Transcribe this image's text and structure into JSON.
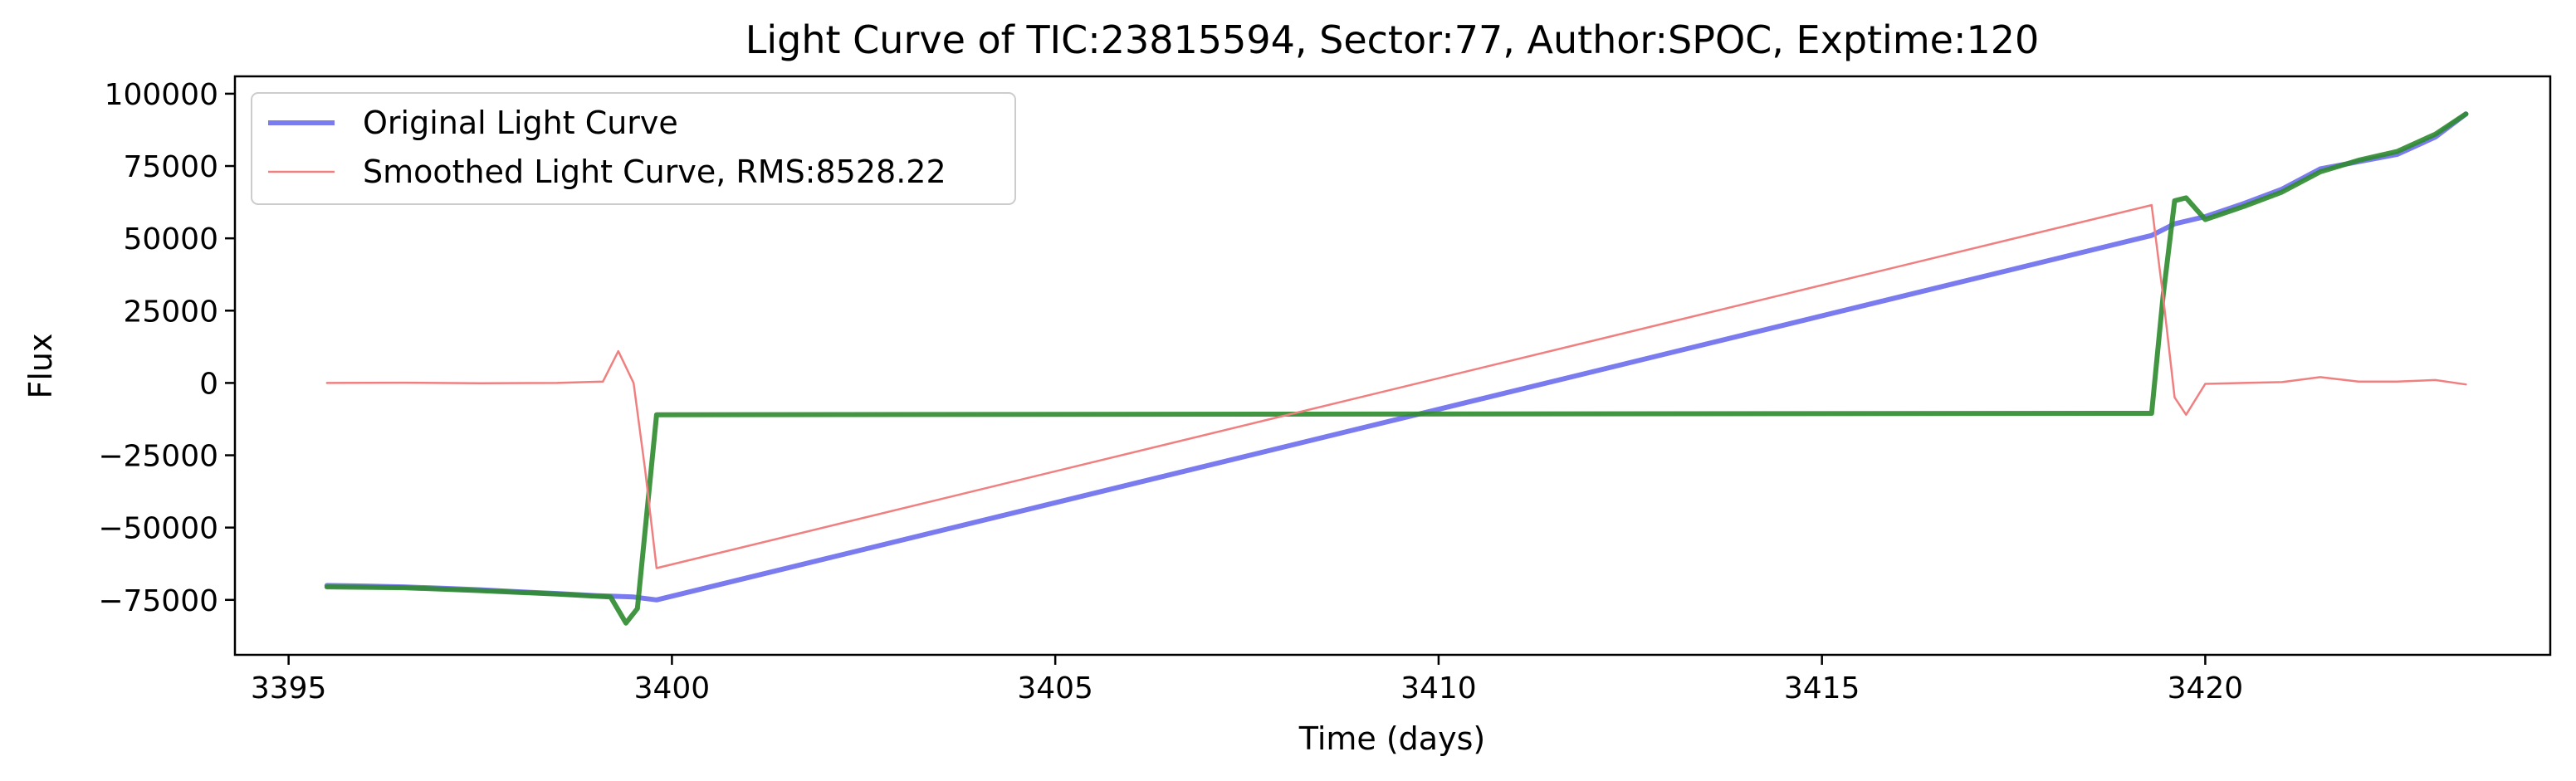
{
  "chart_data": {
    "type": "line",
    "title": "Light Curve of TIC:23815594, Sector:77, Author:SPOC, Exptime:120",
    "xlabel": "Time (days)",
    "ylabel": "Flux",
    "xlim": [
      3394.3,
      3424.5
    ],
    "ylim": [
      -94000,
      106000
    ],
    "x_ticks": [
      3395,
      3400,
      3405,
      3410,
      3415,
      3420
    ],
    "y_ticks": [
      100000,
      75000,
      50000,
      25000,
      0,
      -25000,
      -50000,
      -75000
    ],
    "grid": false,
    "legend": {
      "position": "top-left"
    },
    "series": [
      {
        "name": "Original Light Curve",
        "color": "#7b7bf0",
        "x": [
          3395.5,
          3396.0,
          3396.5,
          3397.0,
          3397.5,
          3398.0,
          3398.5,
          3399.0,
          3399.5,
          3399.8,
          3419.3,
          3419.6,
          3420.0,
          3420.5,
          3421.0,
          3421.5,
          3422.0,
          3422.5,
          3423.0,
          3423.4
        ],
        "y": [
          -70000,
          -70200,
          -70500,
          -71000,
          -71500,
          -72200,
          -72800,
          -73500,
          -74000,
          -75000,
          51000,
          55000,
          57500,
          62000,
          67000,
          74000,
          76500,
          79000,
          85000,
          93000
        ]
      },
      {
        "name": "",
        "color": "#2e8b2e",
        "x": [
          3395.5,
          3396.5,
          3397.5,
          3398.5,
          3399.2,
          3399.4,
          3399.55,
          3399.8,
          3419.3,
          3419.45,
          3419.6,
          3419.75,
          3420.0,
          3420.5,
          3421.0,
          3421.5,
          3422.0,
          3422.5,
          3423.0,
          3423.4
        ],
        "y": [
          -70500,
          -70800,
          -71800,
          -73000,
          -74000,
          -83000,
          -78000,
          -11000,
          -10500,
          30000,
          63000,
          64000,
          56500,
          61000,
          66000,
          73000,
          77000,
          80000,
          86000,
          93000
        ]
      },
      {
        "name": "Smoothed Light Curve, RMS:8528.22",
        "color": "#f08080",
        "x": [
          3395.5,
          3396.5,
          3397.5,
          3398.5,
          3399.1,
          3399.3,
          3399.5,
          3399.65,
          3399.8,
          3419.3,
          3419.45,
          3419.6,
          3419.75,
          3420.0,
          3420.5,
          3421.0,
          3421.5,
          3422.0,
          3422.5,
          3423.0,
          3423.4
        ],
        "y": [
          0,
          100,
          -100,
          0,
          500,
          11000,
          0,
          -30000,
          -64000,
          61500,
          30000,
          -5000,
          -11000,
          -300,
          0,
          300,
          2000,
          500,
          500,
          1000,
          -500
        ]
      }
    ]
  }
}
